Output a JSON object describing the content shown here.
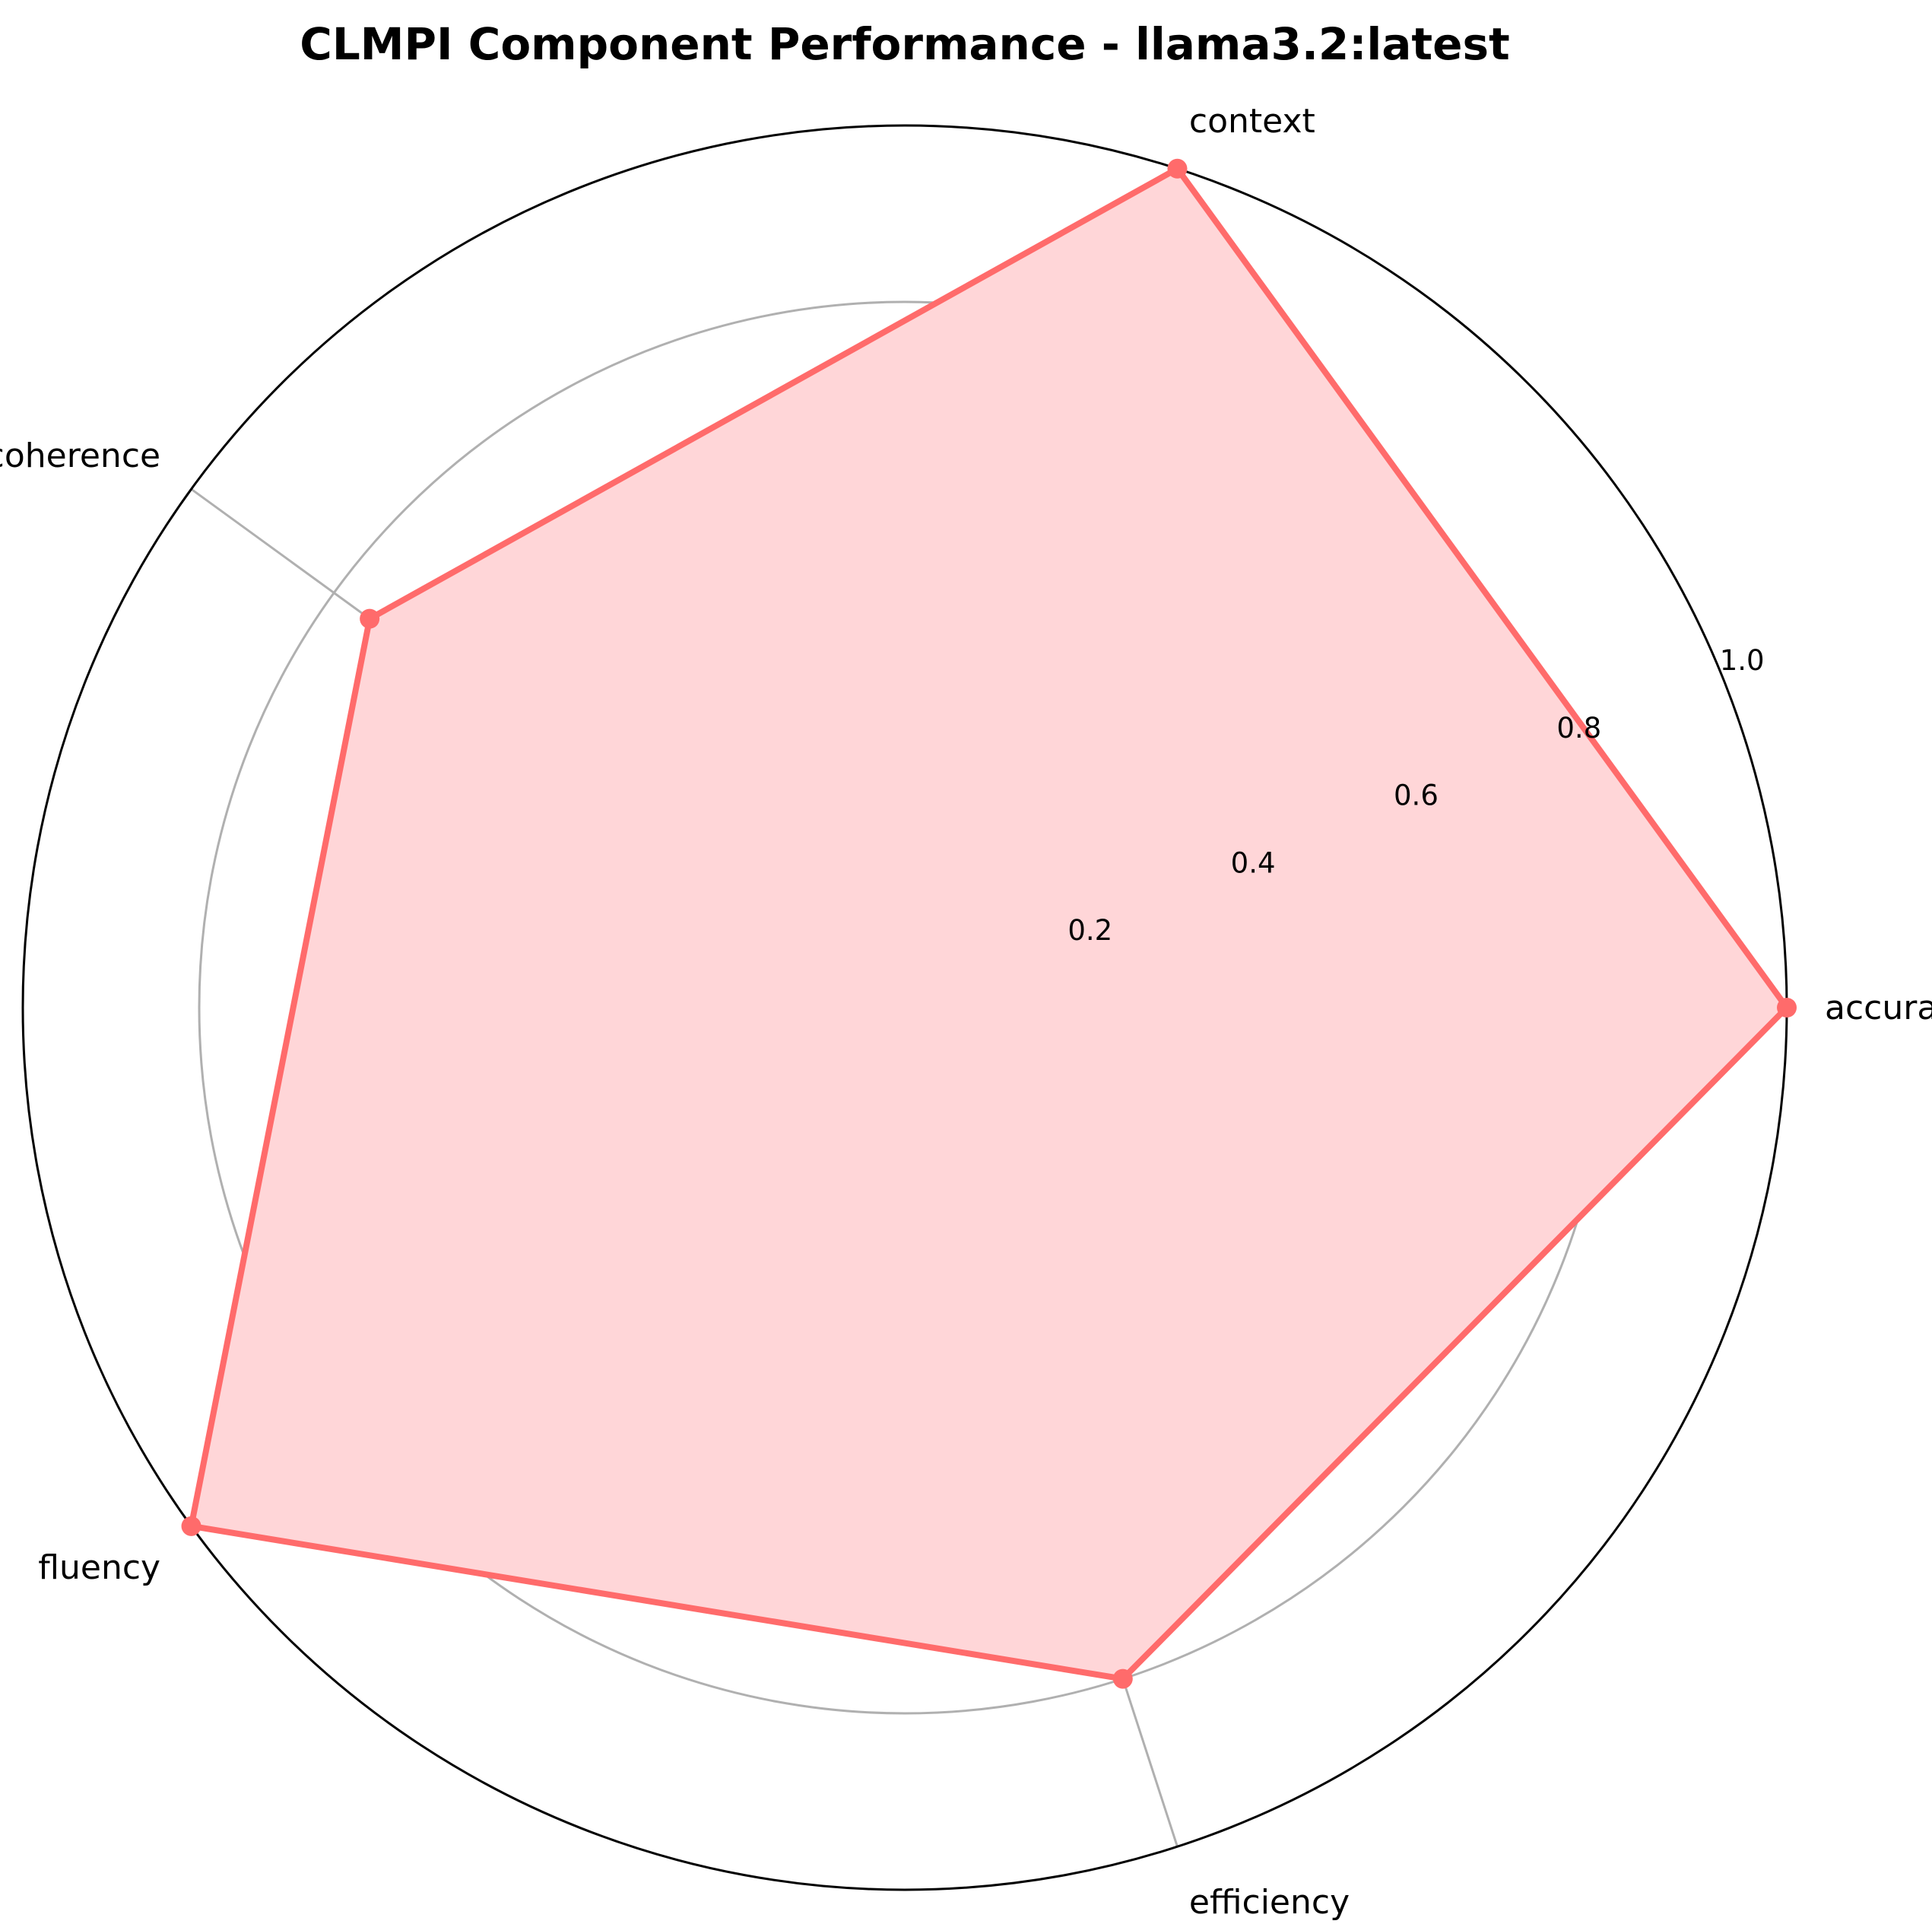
{
  "chart_data": {
    "type": "radar",
    "title": "CLMPI Component Performance - llama3.2:latest",
    "categories": [
      "accuracy",
      "context",
      "coherence",
      "fluency",
      "efficiency"
    ],
    "series": [
      {
        "values": [
          1.0,
          1.0,
          0.75,
          1.0,
          0.8
        ]
      }
    ],
    "rlim": [
      0,
      1.0
    ],
    "r_ticks": [
      "0.2",
      "0.4",
      "0.6",
      "0.8",
      "1.0"
    ],
    "r_tick_values": [
      0.2,
      0.4,
      0.6,
      0.8,
      1.0
    ],
    "grid": true,
    "colors": {
      "line": "#ff6b6b",
      "fill": "#ffd6d8",
      "grid": "#b0b0b0",
      "frame": "#000000"
    }
  }
}
